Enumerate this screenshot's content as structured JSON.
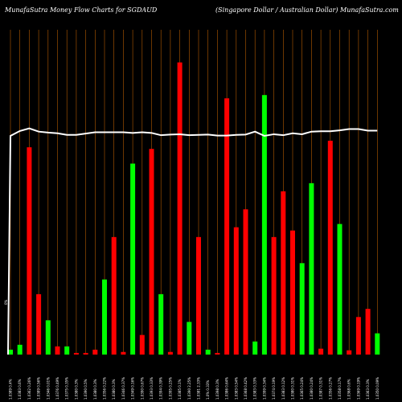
{
  "header": {
    "title_left": "MunafaSutra  Money  Flow  Charts for  SGDAUD",
    "title_right": "(Singapore    Dollar / Australian  Dollar) MunafaSutra.com"
  },
  "colors": {
    "background": "#000000",
    "grid": "#b35a00",
    "buy": "#00ff00",
    "sell": "#ff0000",
    "price_line": "#ffffff",
    "label": "#ffffff"
  },
  "chart_data": {
    "type": "bar",
    "ylim": [
      0,
      100
    ],
    "first_label": "0%",
    "categories": [
      "1.0389 0.4%",
      "1.0383 0.6%",
      "1.0362 0.26%",
      "1.0389 0.56%",
      "1.0346 0.01%",
      "1.0376 0.49%",
      "1.0375 0.35%",
      "1.0380 0.3%",
      "1.0390 0.5%",
      "1.0380 0.3%",
      "1.0356 0.22%",
      "1.0380 0.3%",
      "1.0346 0.37%",
      "1.0349 0.16%",
      "1.0390 0.67%",
      "1.0393 0.33%",
      "1.0394 0.39%",
      "1.0395 0.25%",
      "1.0385 0.1%",
      "1.0390 2.25%",
      "1.0381 2.33%",
      "1.0% 0.33%",
      "1.0398 0.3%",
      "1.0386 0.64%",
      "1.0383 0.54%",
      "1.0368 0.42%",
      "1.0383 0.33%",
      "1.0399 0.34%",
      "1.0374 0.19%",
      "1.0383 0.12%",
      "1.0380 0.31%",
      "1.0365 0.24%",
      "1.0380 0.24%",
      "1.0387 0.31%",
      "1.0356 0.27%",
      "1.0358 0.17%",
      "1.0368 0.6%",
      "1.0369 0.19%",
      "1.0363 0.3%",
      "1.0350 0.09%"
    ],
    "series": [
      {
        "flow": [
          "buy",
          "buy",
          "sell",
          "sell",
          "buy",
          "sell",
          "buy",
          "sell",
          "sell",
          "sell",
          "buy",
          "sell",
          "sell",
          "buy",
          "sell",
          "sell",
          "buy",
          "sell",
          "sell",
          "buy",
          "sell",
          "buy",
          "sell",
          "sell",
          "sell",
          "sell",
          "buy",
          "buy",
          "sell",
          "sell",
          "sell",
          "buy",
          "buy",
          "sell",
          "sell",
          "buy",
          "sell",
          "sell",
          "sell",
          "buy"
        ],
        "values": [
          1.5,
          3.0,
          63.5,
          18.5,
          10.5,
          2.5,
          2.5,
          0.5,
          0.5,
          1.5,
          23.0,
          36.0,
          0.8,
          58.5,
          6.0,
          63.0,
          18.5,
          0.8,
          89.5,
          10.0,
          36.0,
          1.5,
          0.5,
          78.5,
          39.0,
          44.5,
          4.0,
          79.5,
          36.0,
          50.0,
          38.0,
          28.0,
          52.5,
          1.8,
          65.5,
          40.0,
          1.3,
          11.5,
          14.0,
          6.5
        ]
      }
    ],
    "price_line": [
      67.0,
      68.5,
      69.3,
      68.3,
      68.0,
      67.8,
      67.3,
      67.3,
      67.7,
      68.1,
      68.1,
      68.1,
      68.1,
      67.9,
      68.1,
      67.9,
      67.2,
      67.4,
      67.5,
      67.2,
      67.3,
      67.4,
      67.1,
      67.1,
      67.3,
      67.4,
      68.3,
      67.0,
      67.5,
      67.2,
      67.8,
      67.5,
      68.3,
      68.4,
      68.4,
      68.7,
      69.1,
      69.1,
      68.6,
      68.6
    ]
  }
}
